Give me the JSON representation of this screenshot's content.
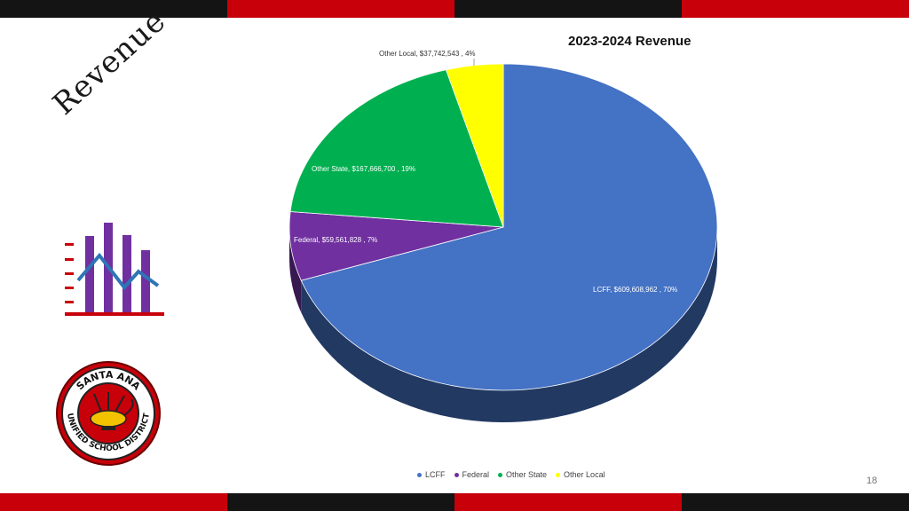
{
  "slide": {
    "section_title": "Revenue",
    "page_number": "18"
  },
  "logo": {
    "name": "santa-ana-unified-school-district-seal",
    "text": "SANTA ANA UNIFIED SCHOOL DISTRICT"
  },
  "icon": {
    "name": "bar-line-chart-icon"
  },
  "colors": {
    "band_dark": "#141414",
    "band_red": "#c8000a"
  },
  "chart_data": {
    "type": "pie",
    "title": "2023-2024 Revenue",
    "slices": [
      {
        "name": "LCFF",
        "value": 609608962,
        "label": "LCFF, $609,608,962 , 70%",
        "color": "#4472c4"
      },
      {
        "name": "Federal",
        "value": 59561828,
        "label": "Federal, $59,561,828 , 7%",
        "color": "#7030a0"
      },
      {
        "name": "Other State",
        "value": 167666700,
        "label": "Other State, $167,666,700 , 19%",
        "color": "#00b050"
      },
      {
        "name": "Other Local",
        "value": 37742543,
        "label": "Other Local, $37,742,543 , 4%",
        "color": "#ffff00"
      }
    ],
    "legend_position": "bottom"
  }
}
